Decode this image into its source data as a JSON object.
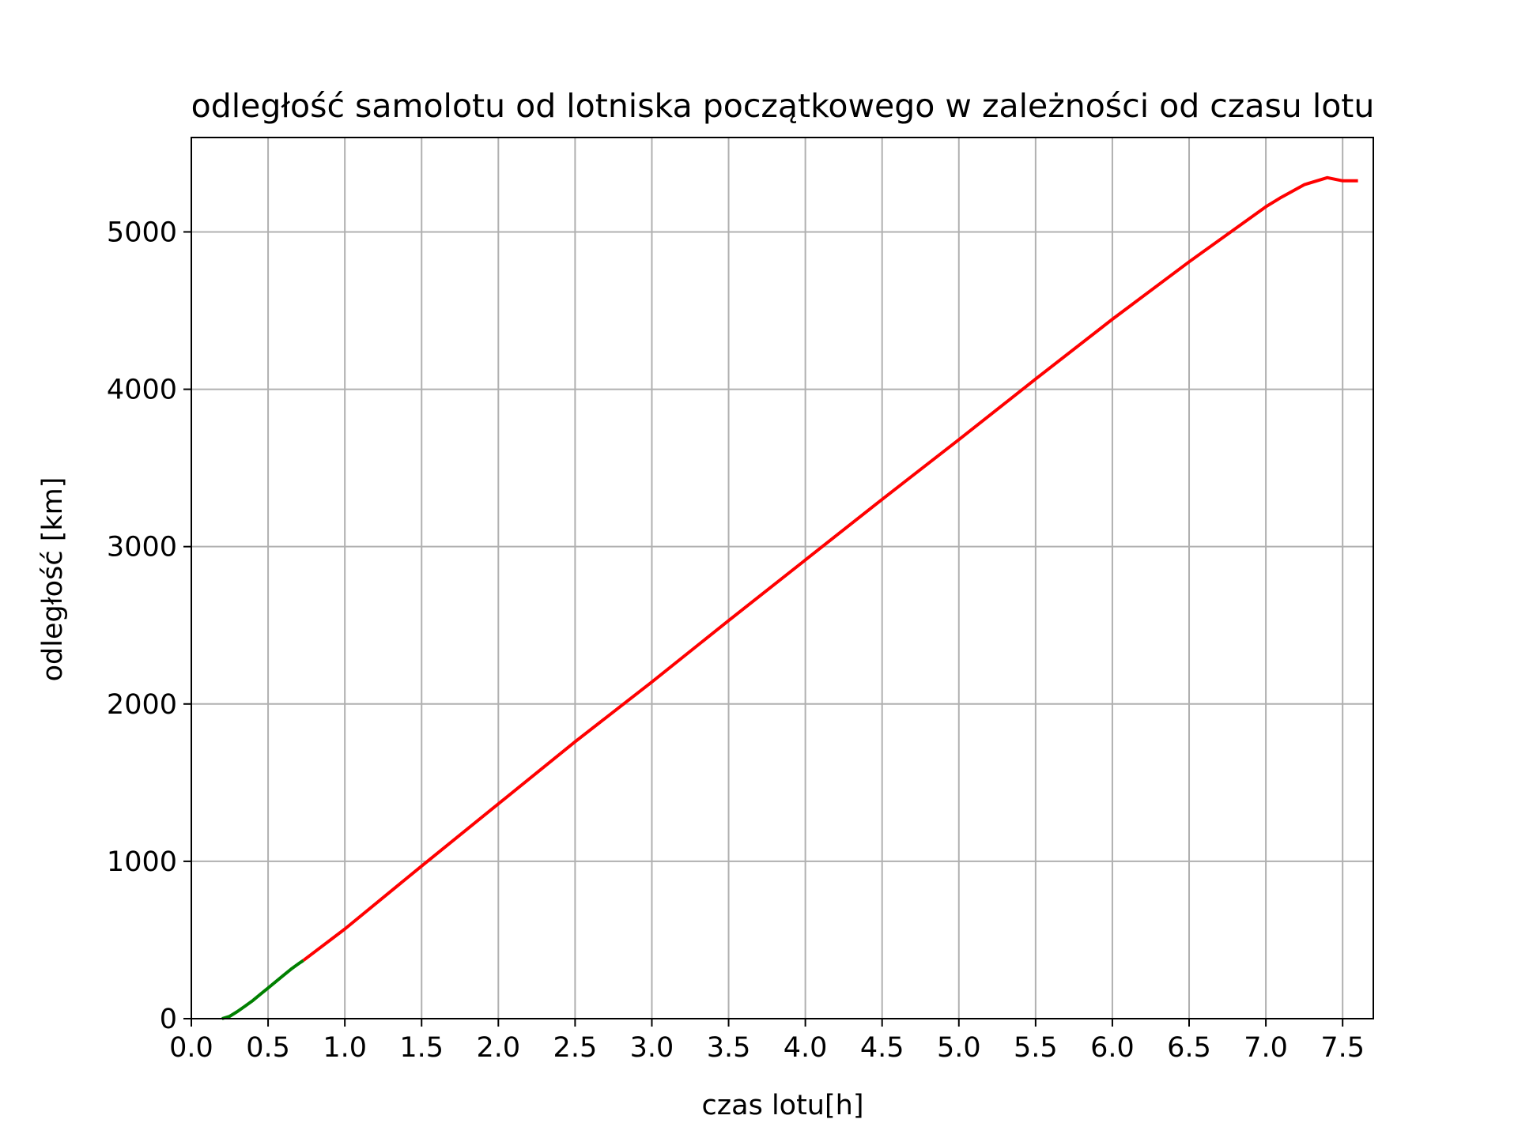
{
  "chart_data": {
    "type": "line",
    "title": "odległość samolotu od lotniska początkowego w zależności od czasu lotu",
    "xlabel": "czas lotu[h]",
    "ylabel": "odległość [km]",
    "xlim": [
      0.0,
      7.7
    ],
    "ylim": [
      0,
      5600
    ],
    "xticks": [
      0.0,
      0.5,
      1.0,
      1.5,
      2.0,
      2.5,
      3.0,
      3.5,
      4.0,
      4.5,
      5.0,
      5.5,
      6.0,
      6.5,
      7.0,
      7.5
    ],
    "xtick_labels": [
      "0.0",
      "0.5",
      "1.0",
      "1.5",
      "2.0",
      "2.5",
      "3.0",
      "3.5",
      "4.0",
      "4.5",
      "5.0",
      "5.5",
      "6.0",
      "6.5",
      "7.0",
      "7.5"
    ],
    "yticks": [
      0,
      1000,
      2000,
      3000,
      4000,
      5000
    ],
    "ytick_labels": [
      "0",
      "1000",
      "2000",
      "3000",
      "4000",
      "5000"
    ],
    "grid": true,
    "legend": false,
    "series": [
      {
        "color": "#008000",
        "x": [
          0.2,
          0.25,
          0.3,
          0.35,
          0.4,
          0.45,
          0.5,
          0.55,
          0.6,
          0.65,
          0.7,
          0.73
        ],
        "y": [
          0,
          15,
          45,
          80,
          115,
          155,
          195,
          235,
          275,
          315,
          350,
          370
        ]
      },
      {
        "color": "#ff0000",
        "x": [
          0.73,
          1.0,
          1.5,
          2.0,
          2.5,
          3.0,
          3.5,
          4.0,
          4.5,
          5.0,
          5.5,
          6.0,
          6.5,
          7.0,
          7.1,
          7.25,
          7.4,
          7.5,
          7.6
        ],
        "y": [
          370,
          570,
          970,
          1365,
          1760,
          2140,
          2530,
          2915,
          3300,
          3680,
          4065,
          4445,
          4810,
          5160,
          5220,
          5300,
          5345,
          5325,
          5325
        ]
      }
    ]
  }
}
